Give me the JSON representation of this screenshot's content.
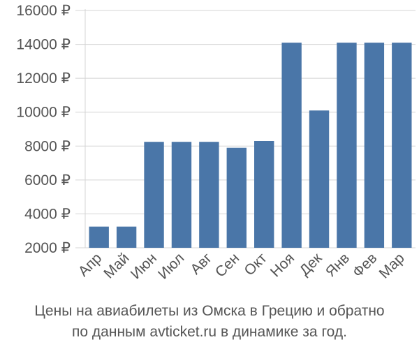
{
  "chart_data": {
    "type": "bar",
    "categories": [
      "Апр",
      "Май",
      "Июн",
      "Июл",
      "Авг",
      "Сен",
      "Окт",
      "Ноя",
      "Дек",
      "Янв",
      "Фев",
      "Мар"
    ],
    "values": [
      3250,
      3250,
      8250,
      8250,
      8250,
      7900,
      8300,
      14100,
      10100,
      14100,
      14100,
      14100
    ],
    "ylim": [
      2000,
      16000
    ],
    "yticks": [
      2000,
      4000,
      6000,
      8000,
      10000,
      12000,
      14000,
      16000
    ],
    "ytick_labels": [
      "2000 ₽",
      "4000 ₽",
      "6000 ₽",
      "8000 ₽",
      "10000 ₽",
      "12000 ₽",
      "14000 ₽",
      "16000 ₽"
    ],
    "grid": true,
    "bar_color": "#4a76a8",
    "grid_color": "#d4d4d4",
    "text_color": "#555555"
  },
  "caption": {
    "line1": "Цены на авиабилеты из Омска в Грецию и обратно",
    "line2": "по данным avticket.ru в динамике за год."
  }
}
